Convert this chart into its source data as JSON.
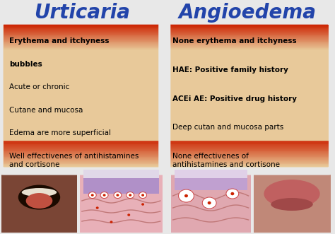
{
  "title_left": "Urticaria",
  "title_right": "Angioedema",
  "title_color": "#2244aa",
  "title_fontsize": 20,
  "background_color": "#e8e8e8",
  "box_fill": "#e8c99a",
  "box_red": "#cc2200",
  "left_items": [
    {
      "text": "Erythema and itchyness",
      "bold": true
    },
    {
      "text": "bubbles",
      "bold": true
    },
    {
      "text": "Acute or chronic",
      "bold": false
    },
    {
      "text": "Cutane and mucosa",
      "bold": false
    },
    {
      "text": "Edema are more superficial",
      "bold": false
    },
    {
      "text": "Well effectivenes of antihistamines\nand cortisone",
      "bold": false
    }
  ],
  "right_items": [
    {
      "text": "None erythema and itchyness",
      "bold": true
    },
    {
      "text": "HAE: Positive family history",
      "bold": true
    },
    {
      "text": "ACEi AE: Positive drug history",
      "bold": true
    },
    {
      "text": "Deep cutan and mucosa parts",
      "bold": false
    },
    {
      "text": "None effectivenes of\nantihistamines and cortisone",
      "bold": false
    }
  ],
  "text_fontsize": 7.5,
  "fig_width": 4.74,
  "fig_height": 3.31
}
